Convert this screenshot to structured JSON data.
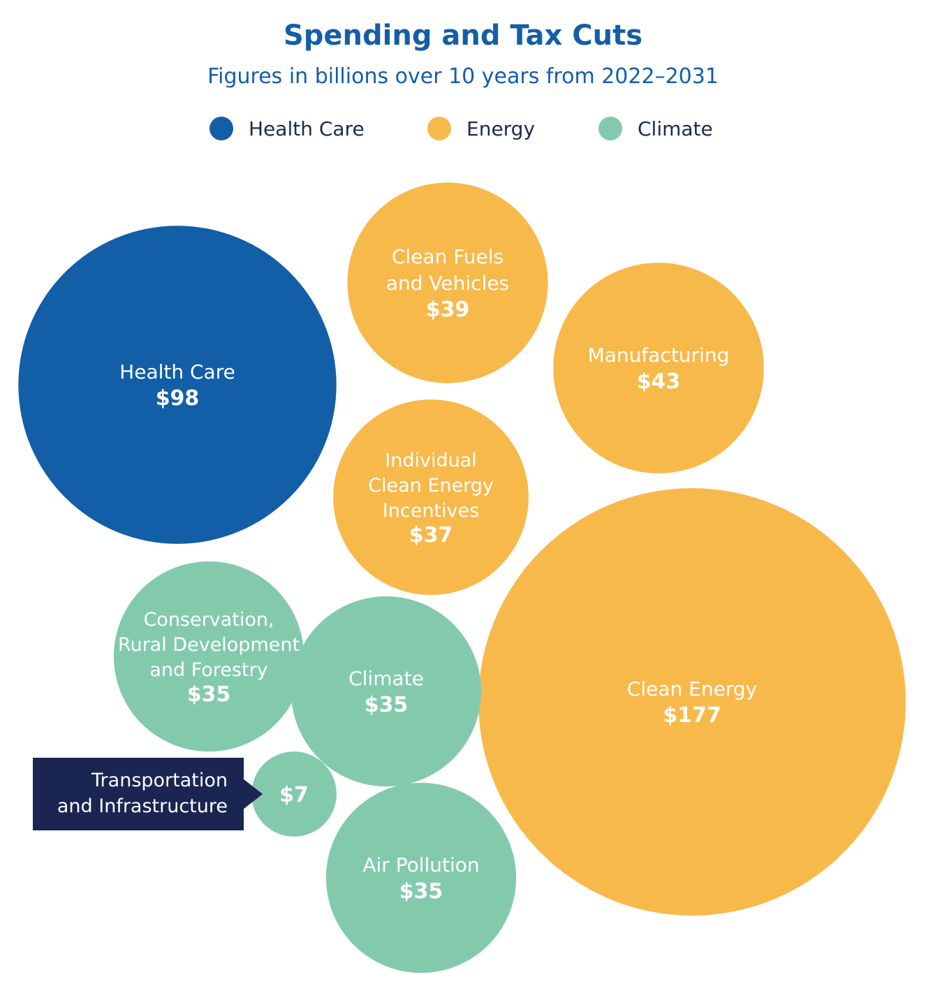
{
  "colors": {
    "Health Care": "#125ea7",
    "Energy": "#f8b94b",
    "Climate": "#83caad",
    "callout_bg": "#1b2552",
    "title": "#145ea8"
  },
  "chart_data": {
    "type": "bubble",
    "title": "Spending and Tax Cuts",
    "subtitle": "Figures in billions over 10 years from 2022–2031",
    "legend": [
      "Health Care",
      "Energy",
      "Climate"
    ],
    "legend_placement": "top-center",
    "bubbles": [
      {
        "label": "Health Care",
        "value": 98,
        "value_label": "$98",
        "group": "Health Care"
      },
      {
        "label": "Clean Fuels and Vehicles",
        "value": 39,
        "value_label": "$39",
        "group": "Energy"
      },
      {
        "label": "Manufacturing",
        "value": 43,
        "value_label": "$43",
        "group": "Energy"
      },
      {
        "label": "Individual Clean Energy Incentives",
        "value": 37,
        "value_label": "$37",
        "group": "Energy"
      },
      {
        "label": "Clean Energy",
        "value": 177,
        "value_label": "$177",
        "group": "Energy"
      },
      {
        "label": "Conservation, Rural Development and Forestry",
        "value": 35,
        "value_label": "$35",
        "group": "Climate"
      },
      {
        "label": "Climate",
        "value": 35,
        "value_label": "$35",
        "group": "Climate"
      },
      {
        "label": "Transportation and Infrastructure",
        "value": 7,
        "value_label": "$7",
        "group": "Climate"
      },
      {
        "label": "Air Pollution",
        "value": 35,
        "value_label": "$35",
        "group": "Climate"
      }
    ]
  }
}
